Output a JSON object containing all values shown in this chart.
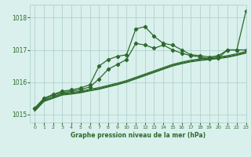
{
  "title": "Graphe pression niveau de la mer (hPa)",
  "background_color": "#d9f0ec",
  "grid_color": "#aaccc8",
  "line_color": "#2d6a2d",
  "xlim": [
    -0.5,
    23
  ],
  "ylim": [
    1014.75,
    1018.4
  ],
  "yticks": [
    1015,
    1016,
    1017,
    1018
  ],
  "xticks": [
    0,
    1,
    2,
    3,
    4,
    5,
    6,
    7,
    8,
    9,
    10,
    11,
    12,
    13,
    14,
    15,
    16,
    17,
    18,
    19,
    20,
    21,
    22,
    23
  ],
  "series": [
    {
      "x": [
        0,
        1,
        2,
        3,
        4,
        5,
        6,
        7,
        8,
        9,
        10,
        11,
        12,
        13,
        14,
        15,
        16,
        17,
        18,
        19,
        20,
        21,
        22,
        23
      ],
      "y": [
        1015.15,
        1015.45,
        1015.55,
        1015.65,
        1015.68,
        1015.72,
        1015.78,
        1015.83,
        1015.9,
        1015.97,
        1016.05,
        1016.15,
        1016.25,
        1016.35,
        1016.45,
        1016.55,
        1016.62,
        1016.68,
        1016.72,
        1016.75,
        1016.78,
        1016.82,
        1016.88,
        1016.95
      ],
      "marker": false,
      "lw": 0.9
    },
    {
      "x": [
        0,
        1,
        2,
        3,
        4,
        5,
        6,
        7,
        8,
        9,
        10,
        11,
        12,
        13,
        14,
        15,
        16,
        17,
        18,
        19,
        20,
        21,
        22,
        23
      ],
      "y": [
        1015.12,
        1015.42,
        1015.52,
        1015.62,
        1015.65,
        1015.69,
        1015.75,
        1015.8,
        1015.87,
        1015.94,
        1016.02,
        1016.12,
        1016.22,
        1016.32,
        1016.42,
        1016.52,
        1016.59,
        1016.65,
        1016.69,
        1016.72,
        1016.75,
        1016.79,
        1016.85,
        1016.92
      ],
      "marker": false,
      "lw": 0.9
    },
    {
      "x": [
        0,
        1,
        2,
        3,
        4,
        5,
        6,
        7,
        8,
        9,
        10,
        11,
        12,
        13,
        14,
        15,
        16,
        17,
        18,
        19,
        20,
        21,
        22,
        23
      ],
      "y": [
        1015.1,
        1015.4,
        1015.5,
        1015.6,
        1015.63,
        1015.67,
        1015.73,
        1015.78,
        1015.85,
        1015.92,
        1016.0,
        1016.1,
        1016.2,
        1016.3,
        1016.4,
        1016.5,
        1016.57,
        1016.63,
        1016.67,
        1016.7,
        1016.73,
        1016.77,
        1016.83,
        1016.9
      ],
      "marker": false,
      "lw": 0.9
    },
    {
      "x": [
        0,
        1,
        2,
        3,
        4,
        5,
        6,
        7,
        8,
        9,
        10,
        11,
        12,
        13,
        14,
        15,
        16,
        17,
        18,
        19,
        20,
        21,
        22,
        23
      ],
      "y": [
        1015.18,
        1015.48,
        1015.6,
        1015.68,
        1015.72,
        1015.77,
        1015.85,
        1016.1,
        1016.4,
        1016.55,
        1016.7,
        1017.2,
        1017.15,
        1017.05,
        1017.15,
        1017.0,
        1016.9,
        1016.82,
        1016.78,
        1016.72,
        1016.75,
        1017.0,
        1017.0,
        1017.0
      ],
      "marker": true,
      "lw": 0.9
    },
    {
      "x": [
        0,
        1,
        2,
        3,
        4,
        5,
        6,
        7,
        8,
        9,
        10,
        11,
        12,
        13,
        14,
        15,
        16,
        17,
        18,
        19,
        20,
        21,
        22,
        23
      ],
      "y": [
        1015.2,
        1015.5,
        1015.62,
        1015.72,
        1015.76,
        1015.82,
        1015.92,
        1016.5,
        1016.7,
        1016.8,
        1016.85,
        1017.65,
        1017.72,
        1017.42,
        1017.2,
        1017.15,
        1017.0,
        1016.85,
        1016.82,
        1016.78,
        1016.82,
        1017.0,
        1017.0,
        1018.2
      ],
      "marker": true,
      "lw": 0.9
    }
  ]
}
